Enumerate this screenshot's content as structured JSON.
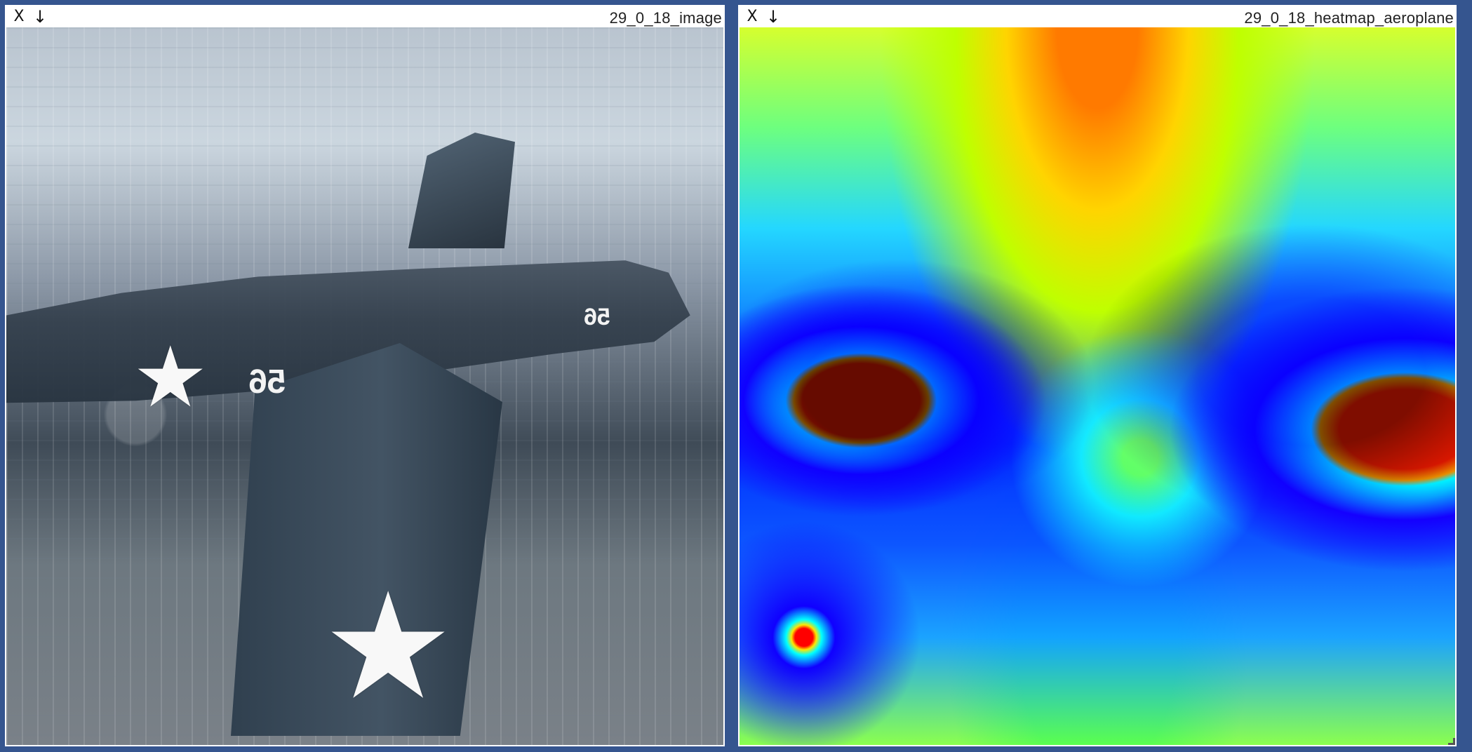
{
  "panels": [
    {
      "title": "29_0_18_image",
      "buttons": {
        "close": "X",
        "download": "↓"
      },
      "overlay_text": {
        "number_large": "56",
        "number_small": "56",
        "star": "★"
      }
    },
    {
      "title": "29_0_18_heatmap_aeroplane",
      "buttons": {
        "close": "X",
        "download": "↓"
      }
    }
  ],
  "colors": {
    "background": "#35558f",
    "panel_border": "#ffffff",
    "heat_red": "#ff1a00",
    "heat_blue": "#0031ff",
    "heat_yellow": "#ffd400"
  }
}
